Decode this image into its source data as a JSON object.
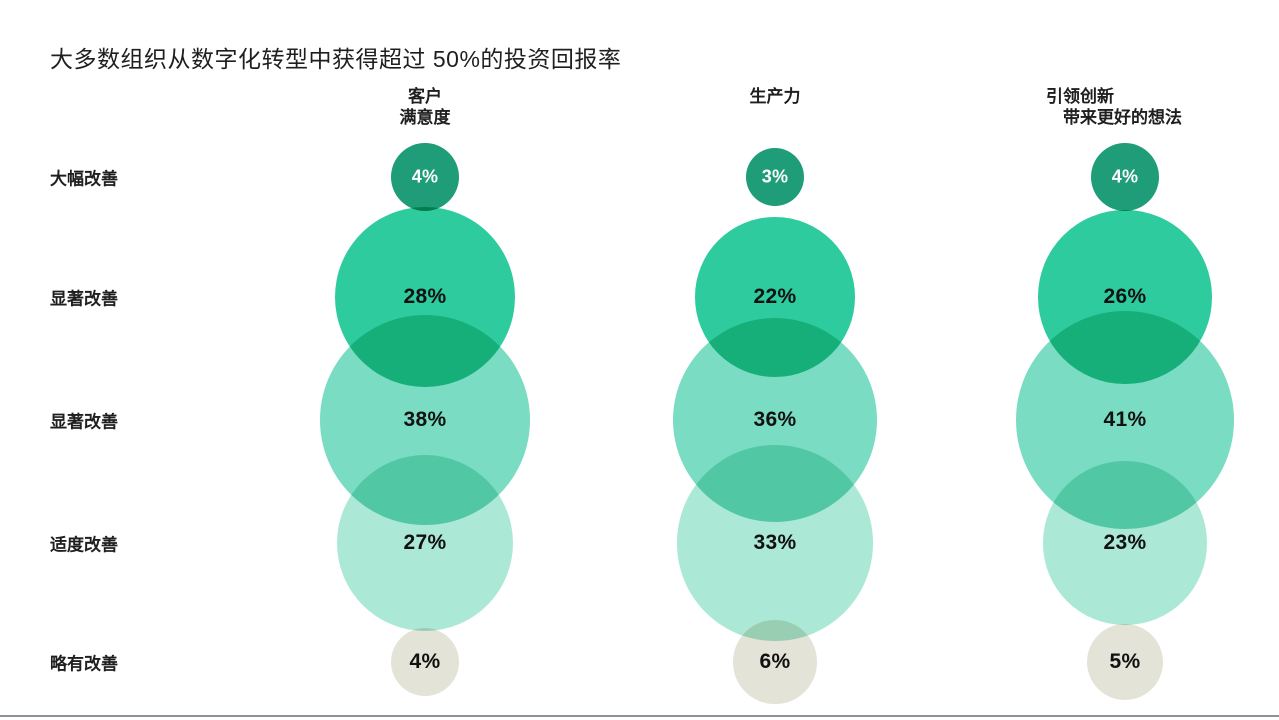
{
  "title": "大多数组织从数字化转型中获得超过 50%的投资回报率",
  "chart_data": {
    "type": "bubble",
    "title": "大多数组织从数字化转型中获得超过 50%的投资回报率",
    "row_categories": [
      "大幅改善",
      "显著改善",
      "显著改善",
      "适度改善",
      "略有改善"
    ],
    "series": [
      {
        "name": "客户满意度",
        "name_lines": [
          "客户",
          "满意度"
        ],
        "values": [
          4,
          28,
          38,
          27,
          4
        ],
        "labels": [
          "4%",
          "28%",
          "38%",
          "27%",
          "4%"
        ]
      },
      {
        "name": "生产力",
        "name_lines": [
          "生产力"
        ],
        "values": [
          3,
          22,
          36,
          33,
          6
        ],
        "labels": [
          "3%",
          "22%",
          "36%",
          "33%",
          "6%"
        ]
      },
      {
        "name": "引领创新 带来更好的想法",
        "name_lines": [
          "引领创新",
          "带来更好的想法"
        ],
        "values": [
          4,
          26,
          41,
          23,
          5
        ],
        "labels": [
          "4%",
          "26%",
          "41%",
          "23%",
          "5%"
        ]
      }
    ],
    "unit": "%",
    "row_colors": [
      "#1f9c78",
      "#2dcb9e",
      "#79dcc3",
      "#abe8d5",
      "#e4e3d7"
    ],
    "row_value_text_colors": [
      "#ffffff",
      "#111111",
      "#111111",
      "#111111",
      "#111111"
    ],
    "legend": "none",
    "grid": "off"
  },
  "footer": {
    "bar_color": "#8b9298"
  }
}
